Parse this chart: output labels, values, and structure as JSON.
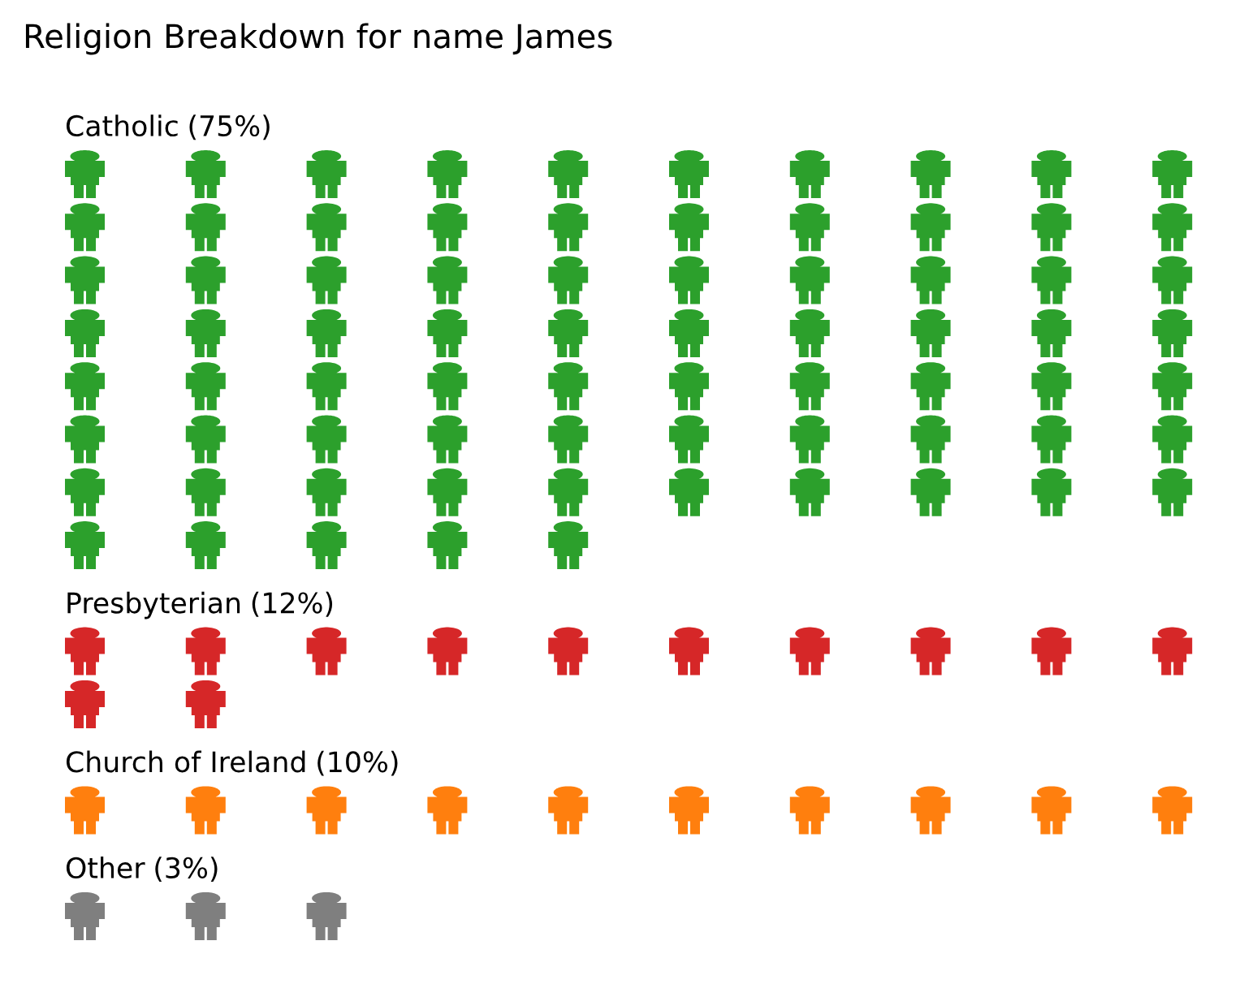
{
  "chart_data": {
    "type": "other",
    "title": "Religion Breakdown for name James",
    "categories": [
      "Catholic",
      "Presbyterian",
      "Church of Ireland",
      "Other"
    ],
    "values": [
      75,
      12,
      10,
      3
    ],
    "value_labels": [
      "(75%)",
      "(12%)",
      "(10%)",
      "(3%)"
    ],
    "colors": [
      "#2ca02c",
      "#d62728",
      "#ff7f0e",
      "#7f7f7f"
    ]
  }
}
